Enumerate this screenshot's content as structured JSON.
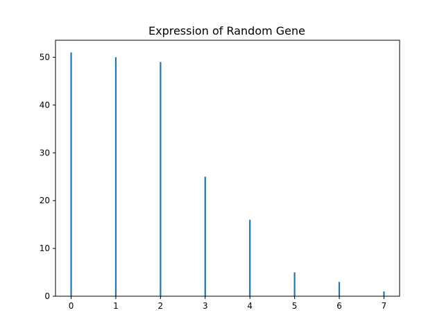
{
  "chart_data": {
    "type": "bar",
    "title": "Expression of Random Gene",
    "xlabel": "",
    "ylabel": "",
    "x": [
      0,
      1,
      2,
      3,
      4,
      5,
      6,
      7
    ],
    "series": [
      {
        "values": [
          51,
          50,
          49,
          25,
          16,
          5,
          3,
          1
        ]
      }
    ],
    "xlim": [
      -0.35,
      7.35
    ],
    "ylim": [
      0,
      53.55
    ],
    "xticks": [
      "0",
      "1",
      "2",
      "3",
      "4",
      "5",
      "6",
      "7"
    ],
    "yticks": [
      "0",
      "10",
      "20",
      "30",
      "40",
      "50"
    ],
    "grid": false,
    "legend": "none",
    "bar_color": "#1f77b4"
  }
}
